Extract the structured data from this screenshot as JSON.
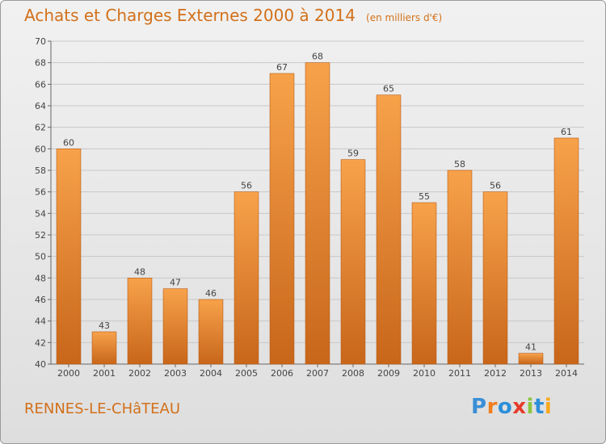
{
  "header": {
    "title": "Achats et Charges Externes 2000 à 2014",
    "subtitle": "(en milliers d'€)"
  },
  "footer": {
    "commune": "RENNES-LE-CHâTEAU",
    "logo": {
      "text": "Proxiti",
      "letter_colors": [
        "#3a8fd6",
        "#f07e1e",
        "#2c8fd9",
        "#e63a2b",
        "#8cc63f",
        "#2c8fd9",
        "#f7a81b"
      ]
    }
  },
  "colors": {
    "title": "#d2701a",
    "bar_light": "#f7a24b",
    "bar_dark": "#c8661a",
    "grid": "#c8c8c8"
  },
  "chart_data": {
    "type": "bar",
    "title": "Achats et Charges Externes 2000 à 2014",
    "subtitle": "(en milliers d'€)",
    "categories": [
      "2000",
      "2001",
      "2002",
      "2003",
      "2004",
      "2005",
      "2006",
      "2007",
      "2008",
      "2009",
      "2010",
      "2011",
      "2012",
      "2013",
      "2014"
    ],
    "values": [
      60,
      43,
      48,
      47,
      46,
      56,
      67,
      68,
      59,
      65,
      55,
      58,
      56,
      41,
      61
    ],
    "ylim": [
      40,
      70
    ],
    "yticks": [
      40,
      42,
      44,
      46,
      48,
      50,
      52,
      54,
      56,
      58,
      60,
      62,
      64,
      66,
      68,
      70
    ],
    "grid": true,
    "data_labels": true
  }
}
